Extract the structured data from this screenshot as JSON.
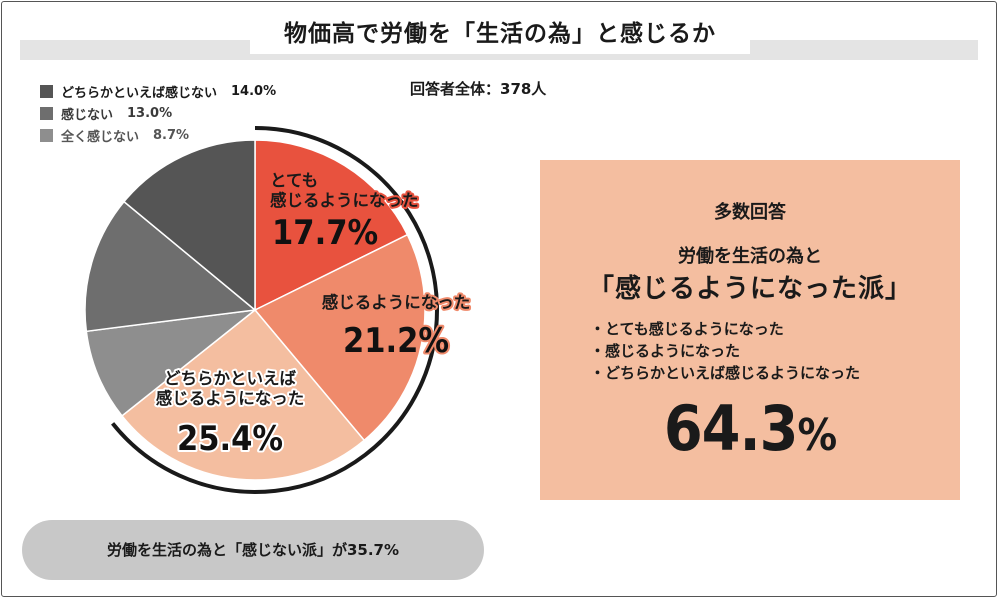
{
  "title": "物価高で労働を「生活の為」と感じるか",
  "respondents": "回答者全体：378人",
  "legend": [
    {
      "label": "どちらかといえば感じない",
      "pct": "14.0%",
      "color": "#555555"
    },
    {
      "label": "感じない",
      "pct": "13.0%",
      "color": "#6e6e6e"
    },
    {
      "label": "全く感じない",
      "pct": "8.7%",
      "color": "#8e8e8e"
    }
  ],
  "chart_data": {
    "type": "pie",
    "title": "物価高で労働を「生活の為」と感じるか",
    "start": "12 o'clock, clockwise",
    "slices": [
      {
        "name": "とても感じるようになった",
        "label_lines": [
          "とても",
          "感じるようになった"
        ],
        "pct_label": "17.7%",
        "value": 17.7,
        "color": "#e8523e",
        "label_color": "#e8523e"
      },
      {
        "name": "感じるようになった",
        "label_lines": [
          "感じるようになった"
        ],
        "pct_label": "21.2%",
        "value": 21.2,
        "color": "#ef8a6b",
        "label_color": "#ef8a6b"
      },
      {
        "name": "どちらかといえば感じるようになった",
        "label_lines": [
          "どちらかといえば",
          "感じるようになった"
        ],
        "pct_label": "25.4%",
        "value": 25.4,
        "color": "#f4bea0",
        "label_color": "#ffffff"
      },
      {
        "name": "全く感じない",
        "value": 8.7,
        "color": "#8e8e8e"
      },
      {
        "name": "感じない",
        "value": 13.0,
        "color": "#6e6e6e"
      },
      {
        "name": "どちらかといえば感じない",
        "value": 14.0,
        "color": "#555555"
      }
    ],
    "highlight_arc_color": "#1a1a1a"
  },
  "majority": {
    "heading": "多数回答",
    "sub": "労働を生活の為と",
    "group": "「感じるようになった派」",
    "items": [
      "・とても感じるようになった",
      "・感じるようになった",
      "・どちらかといえば感じるようになった"
    ],
    "total_value": "64.3",
    "total_unit": "%"
  },
  "minority": {
    "text": "労働を生活の為と「感じない派」が35.7%"
  }
}
